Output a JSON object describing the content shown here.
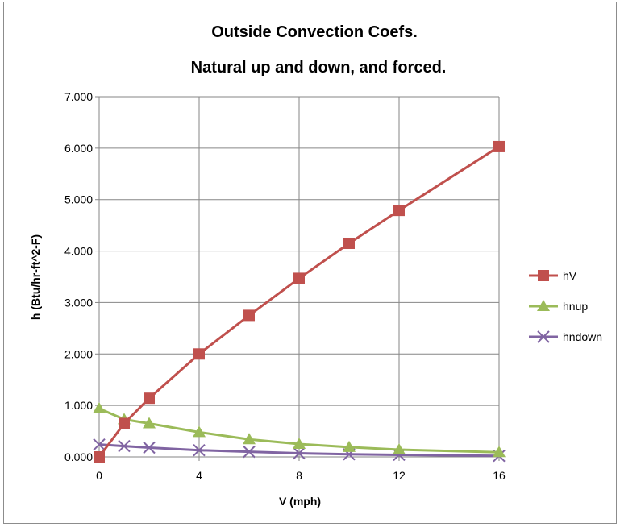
{
  "chart_data": {
    "type": "line",
    "title": "Outside Convection Coefs.",
    "subtitle": "Natural up and down, and forced.",
    "xlabel": "V (mph)",
    "ylabel": "h (Btu/hr-ft^2-F)",
    "xlim": [
      0,
      16
    ],
    "ylim": [
      0,
      7
    ],
    "x_ticks": [
      "0",
      "4",
      "8",
      "12",
      "16"
    ],
    "x_tick_values": [
      0,
      4,
      8,
      12,
      16
    ],
    "y_ticks": [
      "0.000",
      "1.000",
      "2.000",
      "3.000",
      "4.000",
      "5.000",
      "6.000",
      "7.000"
    ],
    "y_tick_values": [
      0,
      1,
      2,
      3,
      4,
      5,
      6,
      7
    ],
    "grid": true,
    "legend_position": "right",
    "series": [
      {
        "name": "hV",
        "color": "#c0504d",
        "marker": "square",
        "x": [
          0,
          1,
          2,
          4,
          6,
          8,
          10,
          12,
          16
        ],
        "values": [
          0.0,
          0.65,
          1.14,
          2.0,
          2.75,
          3.47,
          4.15,
          4.79,
          6.03
        ]
      },
      {
        "name": "hnup",
        "color": "#9bbb59",
        "marker": "triangle",
        "x": [
          0,
          1,
          2,
          4,
          6,
          8,
          10,
          12,
          16
        ],
        "values": [
          0.94,
          0.73,
          0.65,
          0.48,
          0.34,
          0.25,
          0.19,
          0.14,
          0.09
        ]
      },
      {
        "name": "hndown",
        "color": "#8064a2",
        "marker": "x",
        "x": [
          0,
          1,
          2,
          4,
          6,
          8,
          10,
          12,
          16
        ],
        "values": [
          0.24,
          0.21,
          0.18,
          0.13,
          0.1,
          0.07,
          0.05,
          0.04,
          0.02
        ]
      }
    ]
  }
}
